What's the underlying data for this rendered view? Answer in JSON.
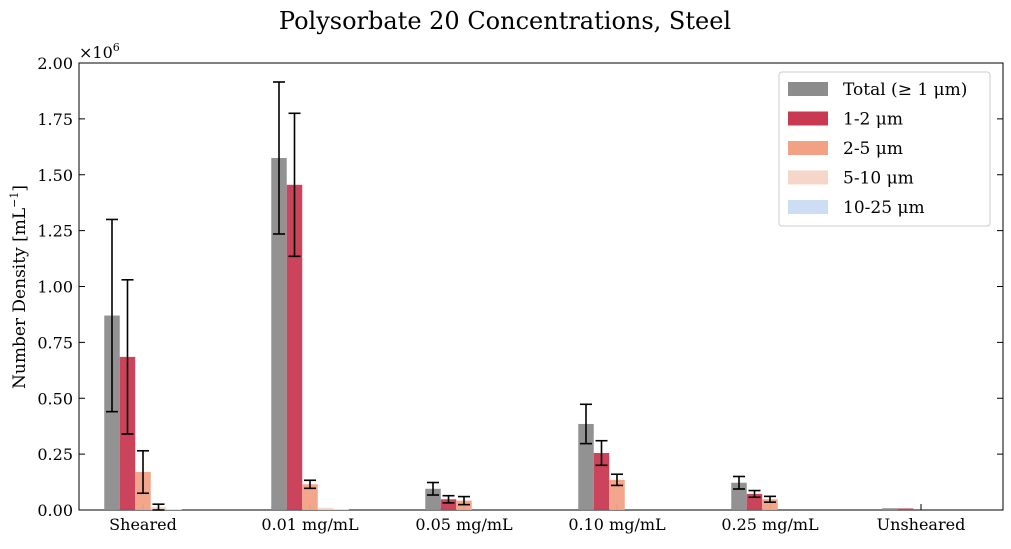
{
  "chart_data": {
    "type": "bar",
    "title": "Polysorbate 20 Concentrations, Steel",
    "xlabel": "",
    "ylabel": "Number Density [mL",
    "ylabel_exponent": "−1",
    "ylabel_close": "]",
    "y_multiplier_base": "×10",
    "y_multiplier_exp": "6",
    "ylim": [
      0,
      2000000
    ],
    "yticks": [
      0,
      250000,
      500000,
      750000,
      1000000,
      1250000,
      1500000,
      1750000,
      2000000
    ],
    "ytick_labels": [
      "0.00",
      "0.25",
      "0.50",
      "0.75",
      "1.00",
      "1.25",
      "1.50",
      "1.75",
      "2.00"
    ],
    "categories": [
      "Sheared",
      "0.01 mg/mL",
      "0.05 mg/mL",
      "0.10 mg/mL",
      "0.25 mg/mL",
      "Unsheared"
    ],
    "legend_position": "top-right",
    "grid": false,
    "series": [
      {
        "name": "Total (≥ 1 μm)",
        "color": "#8c8c8c",
        "values": [
          870000,
          1575000,
          95000,
          385000,
          122000,
          8000
        ],
        "errors": [
          430000,
          340000,
          28000,
          88000,
          28000,
          0
        ]
      },
      {
        "name": "1-2 μm",
        "color": "#c93a52",
        "values": [
          685000,
          1455000,
          48000,
          255000,
          72000,
          7000
        ],
        "errors": [
          345000,
          320000,
          16000,
          55000,
          15000,
          0
        ]
      },
      {
        "name": "2-5 μm",
        "color": "#f2a185",
        "values": [
          170000,
          115000,
          42000,
          135000,
          48000,
          0
        ],
        "errors": [
          95000,
          18000,
          18000,
          25000,
          13000,
          0
        ]
      },
      {
        "name": "5-10 μm",
        "color": "#f6d6c8",
        "values": [
          13000,
          10000,
          0,
          0,
          0,
          0
        ],
        "errors": [
          13000,
          0,
          0,
          0,
          0,
          0
        ]
      },
      {
        "name": "10-25 μm",
        "color": "#cdddf4",
        "values": [
          3000,
          3000,
          0,
          0,
          0,
          0
        ],
        "errors": [
          0,
          0,
          0,
          0,
          0,
          0
        ]
      }
    ]
  }
}
